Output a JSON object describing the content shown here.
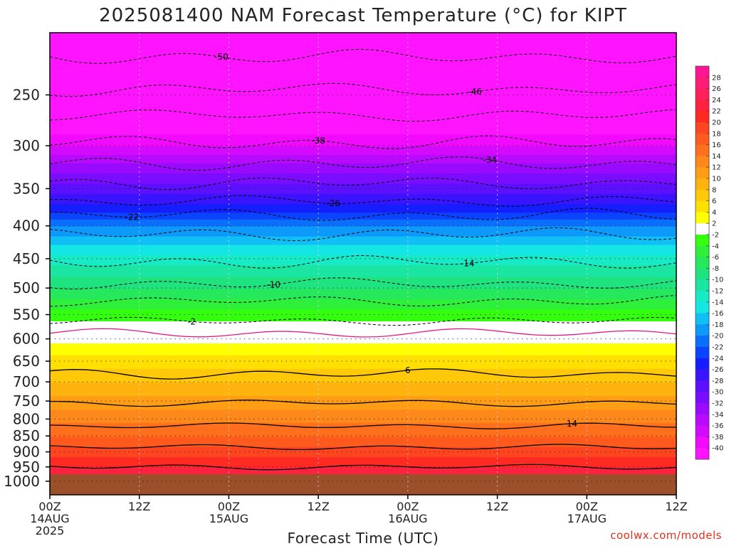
{
  "chart_data": {
    "type": "heatmap",
    "title": "2025081400 NAM Forecast Temperature (°C) for KIPT",
    "xlabel": "Forecast Time (UTC)",
    "ylabel": "",
    "x_ticks": [
      {
        "hour": 0,
        "lines": [
          "00Z",
          "14AUG",
          "2025"
        ]
      },
      {
        "hour": 12,
        "lines": [
          "12Z"
        ]
      },
      {
        "hour": 24,
        "lines": [
          "00Z",
          "15AUG"
        ]
      },
      {
        "hour": 36,
        "lines": [
          "12Z"
        ]
      },
      {
        "hour": 48,
        "lines": [
          "00Z",
          "16AUG"
        ]
      },
      {
        "hour": 60,
        "lines": [
          "12Z"
        ]
      },
      {
        "hour": 72,
        "lines": [
          "00Z",
          "17AUG"
        ]
      },
      {
        "hour": 84,
        "lines": [
          "12Z"
        ]
      }
    ],
    "xlim": [
      0,
      84
    ],
    "y_ticks": [
      250,
      300,
      350,
      400,
      450,
      500,
      550,
      600,
      650,
      700,
      750,
      800,
      850,
      900,
      950,
      1000
    ],
    "ylim": [
      1050,
      200
    ],
    "yscale": "log",
    "surface_pressure_hpa": 975,
    "colorbar": {
      "levels": [
        "28",
        "26",
        "24",
        "22",
        "20",
        "18",
        "16",
        "14",
        "12",
        "10",
        "8",
        "6",
        "4",
        "2",
        "-2",
        "-4",
        "-6",
        "-8",
        "-10",
        "-12",
        "-14",
        "-16",
        "-18",
        "-20",
        "-22",
        "-24",
        "-26",
        "-28",
        "-30",
        "-32",
        "-34",
        "-36",
        "-38",
        "-40"
      ],
      "colors": [
        "#ff1493",
        "#ff1c75",
        "#ff1f5a",
        "#ff2240",
        "#ff2a22",
        "#ff4420",
        "#ff5b1e",
        "#ff6f1c",
        "#ff881a",
        "#ff9e15",
        "#ffb30e",
        "#ffc808",
        "#ffe000",
        "#ffff00",
        "#ffffff",
        "#33ff0f",
        "#2ef03a",
        "#26e85c",
        "#1fe37f",
        "#1ae6a2",
        "#17ebc6",
        "#14e6e6",
        "#10bff5",
        "#0d99fa",
        "#0a6eff",
        "#0a44ff",
        "#141eff",
        "#3a14ff",
        "#5c10ff",
        "#7a0cff",
        "#990aff",
        "#b80aff",
        "#d40aff",
        "#f20aff",
        "#ff14ff"
      ]
    },
    "temperature_profile": [
      {
        "p": 200,
        "t": -54
      },
      {
        "p": 225,
        "t": -50
      },
      {
        "p": 250,
        "t": -46
      },
      {
        "p": 275,
        "t": -42
      },
      {
        "p": 300,
        "t": -38
      },
      {
        "p": 325,
        "t": -33
      },
      {
        "p": 350,
        "t": -29
      },
      {
        "p": 375,
        "t": -25
      },
      {
        "p": 400,
        "t": -20
      },
      {
        "p": 450,
        "t": -13
      },
      {
        "p": 500,
        "t": -8
      },
      {
        "p": 550,
        "t": -3
      },
      {
        "p": 575,
        "t": -1
      },
      {
        "p": 600,
        "t": 1.5
      },
      {
        "p": 650,
        "t": 5
      },
      {
        "p": 700,
        "t": 8
      },
      {
        "p": 750,
        "t": 11
      },
      {
        "p": 800,
        "t": 13.5
      },
      {
        "p": 850,
        "t": 16
      },
      {
        "p": 900,
        "t": 19
      },
      {
        "p": 950,
        "t": 22
      },
      {
        "p": 975,
        "t": 23
      }
    ],
    "contours": [
      {
        "level": -50,
        "mean_p": 218,
        "amp": 6
      },
      {
        "level": -46,
        "mean_p": 245,
        "amp": 7
      },
      {
        "level": -42,
        "mean_p": 269,
        "amp": 7
      },
      {
        "level": -38,
        "mean_p": 297,
        "amp": 8
      },
      {
        "level": -34,
        "mean_p": 320,
        "amp": 8
      },
      {
        "level": -30,
        "mean_p": 343,
        "amp": 9
      },
      {
        "level": -26,
        "mean_p": 366,
        "amp": 9
      },
      {
        "level": -22,
        "mean_p": 385,
        "amp": 10
      },
      {
        "level": -18,
        "mean_p": 412,
        "amp": 10
      },
      {
        "level": -14,
        "mean_p": 455,
        "amp": 12
      },
      {
        "level": -10,
        "mean_p": 492,
        "amp": 12
      },
      {
        "level": -6,
        "mean_p": 524,
        "amp": 12
      },
      {
        "level": -2,
        "mean_p": 563,
        "amp": 9
      },
      {
        "level": 2,
        "mean_p": 588,
        "amp": 10
      },
      {
        "level": 6,
        "mean_p": 680,
        "amp": 14
      },
      {
        "level": 10,
        "mean_p": 755,
        "amp": 12
      },
      {
        "level": 14,
        "mean_p": 820,
        "amp": 10
      },
      {
        "level": 18,
        "mean_p": 885,
        "amp": 9
      },
      {
        "level": 22,
        "mean_p": 950,
        "amp": 10
      }
    ],
    "label_marks": [
      {
        "hour": 23,
        "level": -50
      },
      {
        "hour": 57,
        "level": -46
      },
      {
        "hour": 36,
        "level": -38
      },
      {
        "hour": 59,
        "level": -34
      },
      {
        "hour": 38,
        "level": -26
      },
      {
        "hour": 11,
        "level": -22
      },
      {
        "hour": 56,
        "level": -14
      },
      {
        "hour": 30,
        "level": -10
      },
      {
        "hour": 19,
        "level": -2
      },
      {
        "hour": 48,
        "level": 6
      },
      {
        "hour": 70,
        "level": 14
      }
    ],
    "grid": true,
    "grid_style": "dotted"
  },
  "credit": "coolwx.com/models"
}
